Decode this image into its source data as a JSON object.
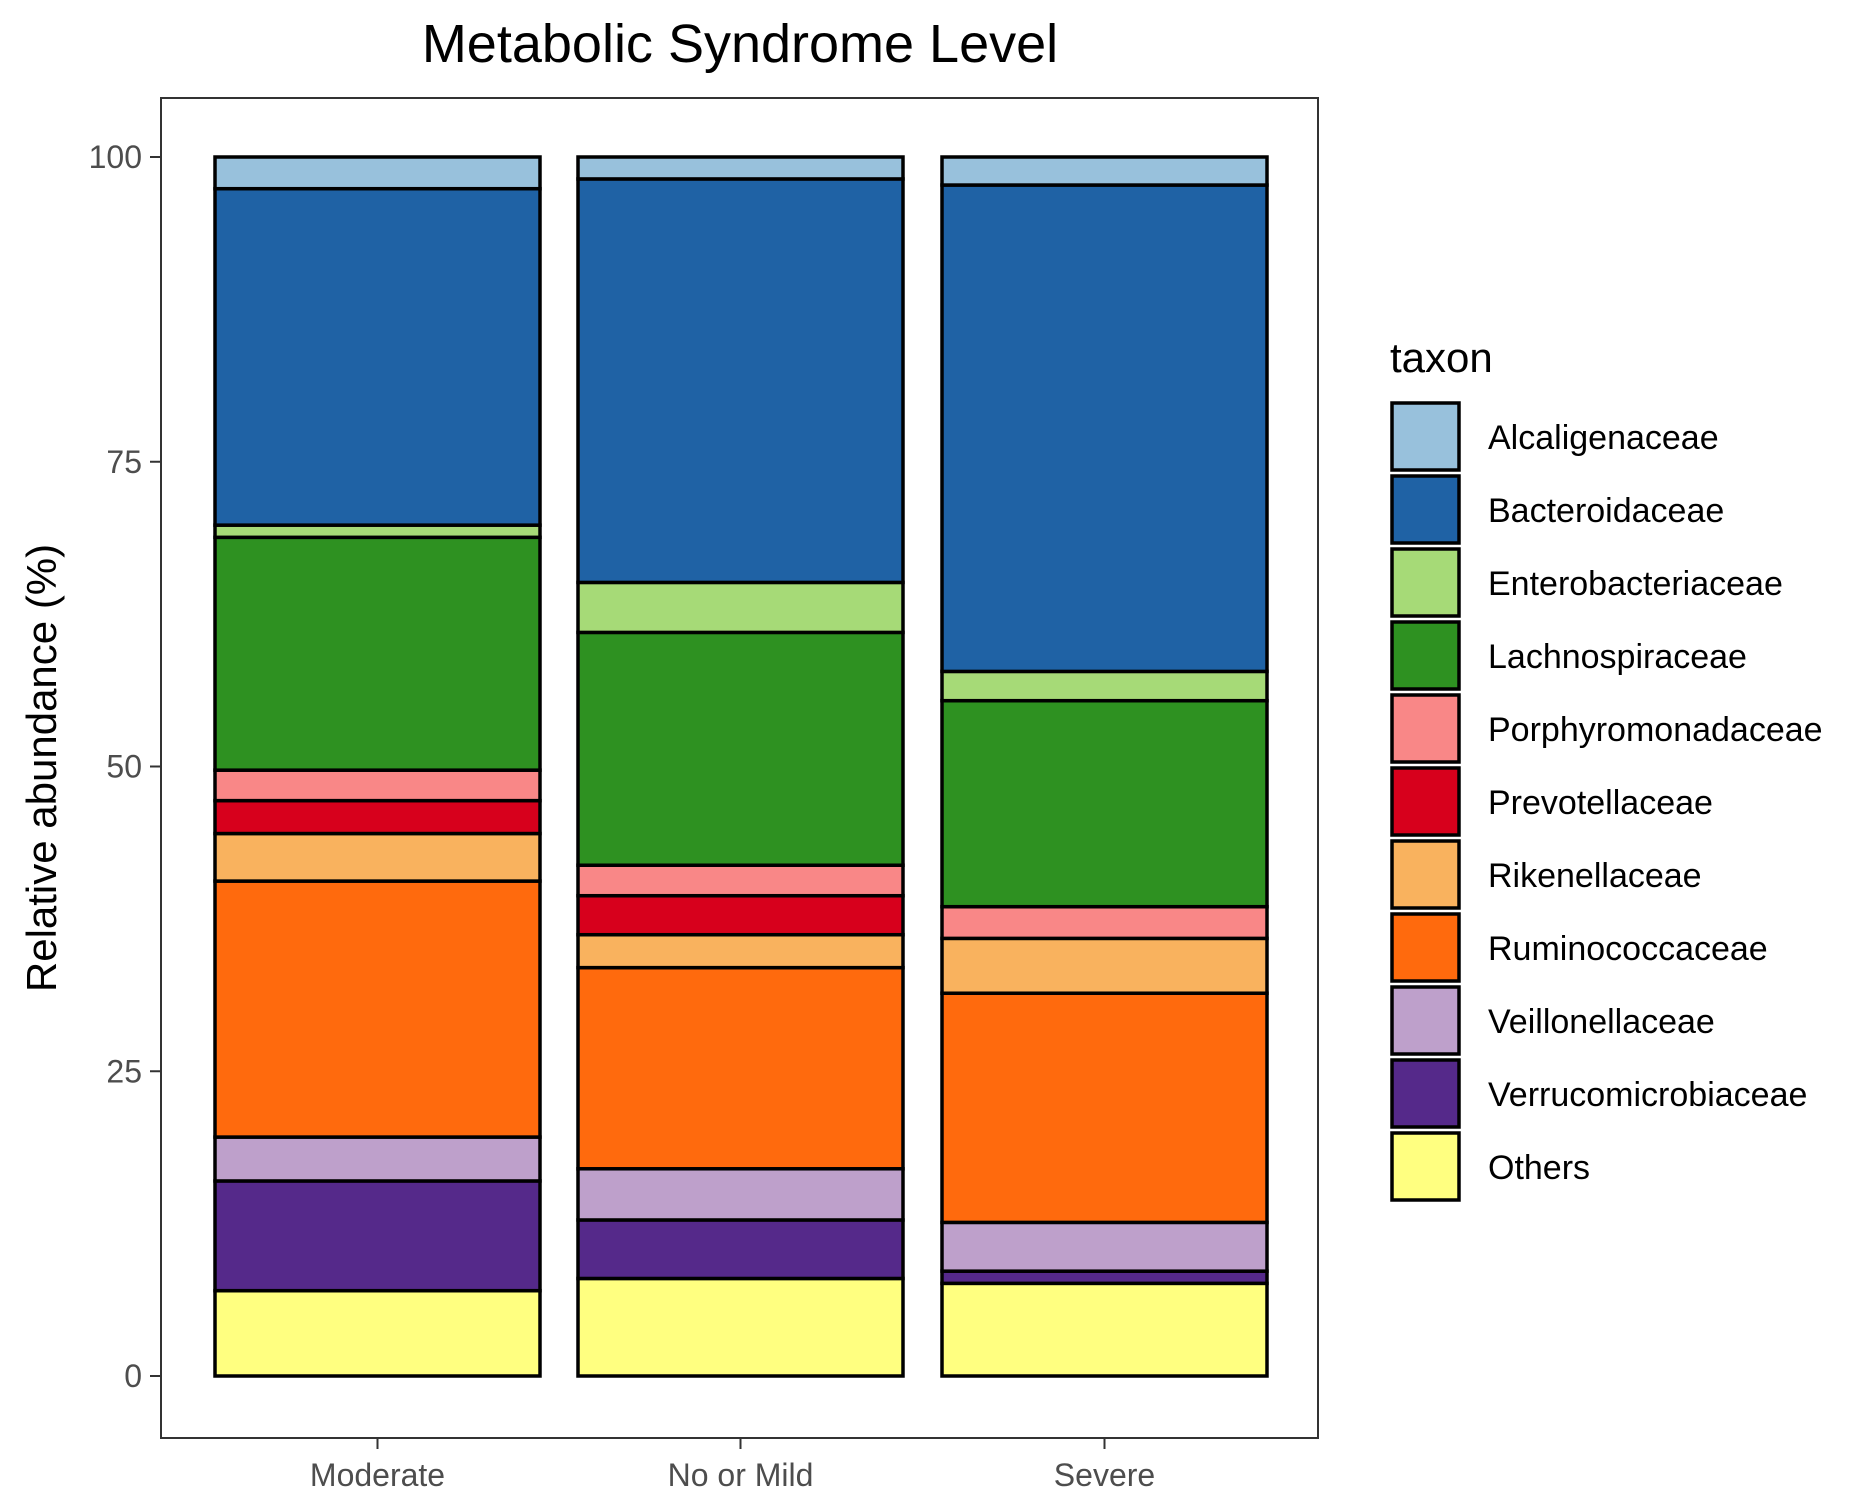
{
  "chart_data": {
    "type": "bar",
    "stacked": true,
    "title": "Metabolic Syndrome Level",
    "xlabel": "",
    "ylabel": "Relative abundance (%)",
    "ylim": [
      0,
      100
    ],
    "yticks": [
      "0",
      "25",
      "50",
      "75",
      "100"
    ],
    "categories": [
      "Moderate",
      "No or Mild",
      "Severe"
    ],
    "legend": {
      "title": "taxon",
      "position": "right"
    },
    "grid": false,
    "series": [
      {
        "name": "Others",
        "color": "#FFFF80",
        "values": [
          7.0,
          8.0,
          7.6
        ]
      },
      {
        "name": "Verrucomicrobiaceae",
        "color": "#55298A",
        "values": [
          9.0,
          4.8,
          1.0
        ]
      },
      {
        "name": "Veillonellaceae",
        "color": "#BEA0CB",
        "values": [
          3.6,
          4.2,
          4.0
        ]
      },
      {
        "name": "Ruminococcaceae",
        "color": "#FF6A0D",
        "values": [
          21.0,
          16.5,
          18.8
        ]
      },
      {
        "name": "Rikenellaceae",
        "color": "#F9B25E",
        "values": [
          3.9,
          2.7,
          4.5
        ]
      },
      {
        "name": "Prevotellaceae",
        "color": "#D7001C",
        "values": [
          2.7,
          3.2,
          0.0
        ]
      },
      {
        "name": "Porphyromonadaceae",
        "color": "#F98787",
        "values": [
          2.5,
          2.5,
          2.6
        ]
      },
      {
        "name": "Lachnospiraceae",
        "color": "#2E9121",
        "values": [
          19.1,
          19.1,
          16.9
        ]
      },
      {
        "name": "Enterobacteriaceae",
        "color": "#A6DA77",
        "values": [
          1.0,
          4.1,
          2.4
        ]
      },
      {
        "name": "Bacteroidaceae",
        "color": "#1F62A5",
        "values": [
          27.6,
          33.1,
          39.9
        ]
      },
      {
        "name": "Alcaligenaceae",
        "color": "#98C1DC",
        "values": [
          2.6,
          1.8,
          2.3
        ]
      }
    ],
    "legend_order": [
      "Alcaligenaceae",
      "Bacteroidaceae",
      "Enterobacteriaceae",
      "Lachnospiraceae",
      "Porphyromonadaceae",
      "Prevotellaceae",
      "Rikenellaceae",
      "Ruminococcaceae",
      "Veillonellaceae",
      "Verrucomicrobiaceae",
      "Others"
    ]
  }
}
